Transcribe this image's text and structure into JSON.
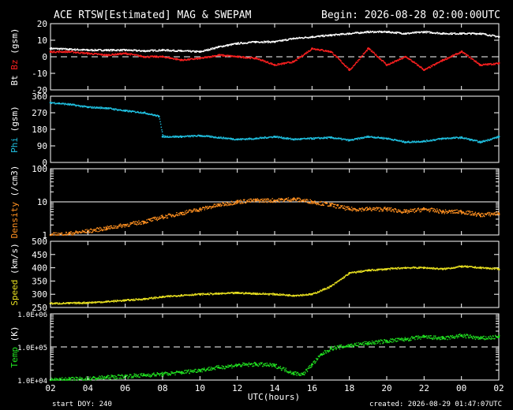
{
  "header": {
    "title": "ACE RTSW[Estimated] MAG & SWEPAM",
    "begin": "Begin: 2026-08-28 02:00:00UTC"
  },
  "footer": {
    "start": "start DOY: 240",
    "created": "created: 2026-08-29 01:47:07UTC"
  },
  "colors": {
    "bt": "#ffffff",
    "bz": "#ff2020",
    "phi": "#20c0e0",
    "density": "#ff9020",
    "speed": "#e8e020",
    "temp": "#20e020"
  },
  "chart_data": {
    "type": "scatter",
    "x_axis": {
      "label": "UTC(hours)",
      "ticks": [
        "02",
        "04",
        "06",
        "08",
        "10",
        "12",
        "14",
        "16",
        "18",
        "20",
        "22",
        "00",
        "02"
      ],
      "range": [
        0,
        24
      ]
    },
    "panels": [
      {
        "id": "mag",
        "ylim": [
          -20,
          20
        ],
        "yticks": [
          "20",
          "10",
          "0",
          "-10",
          "-20"
        ],
        "ylabel_parts": [
          {
            "text": "Bt",
            "color": "#ffffff"
          },
          {
            "text": " Bz",
            "color": "#ff2020"
          },
          {
            "text": " (gsm)",
            "color": "#ffffff"
          }
        ],
        "reference_lines": [
          {
            "y": 0,
            "dashed": true
          }
        ],
        "series": [
          {
            "name": "Bt",
            "color": "#ffffff",
            "x": [
              0,
              1,
              2,
              3,
              4,
              5,
              6,
              7,
              8,
              9,
              10,
              11,
              12,
              13,
              14,
              15,
              16,
              17,
              18,
              19,
              20,
              21,
              22,
              23,
              24
            ],
            "y": [
              5,
              4.5,
              4,
              4,
              4,
              3.5,
              4,
              3.5,
              3,
              6,
              8,
              9,
              9,
              11,
              12,
              13,
              14,
              15,
              15,
              14,
              15,
              14,
              14,
              14,
              12
            ]
          },
          {
            "name": "Bz",
            "color": "#ff2020",
            "x": [
              0,
              1,
              2,
              3,
              4,
              5,
              6,
              7,
              8,
              9,
              10,
              11,
              12,
              13,
              14,
              15,
              16,
              17,
              18,
              19,
              20,
              21,
              22,
              23,
              24
            ],
            "y": [
              3,
              3,
              2,
              1,
              2,
              0,
              0,
              -2,
              -1,
              1,
              0,
              -1,
              -5,
              -3,
              5,
              3,
              -8,
              5,
              -5,
              0,
              -8,
              -2,
              3,
              -5,
              -4
            ]
          }
        ]
      },
      {
        "id": "phi",
        "ylim": [
          0,
          360
        ],
        "yticks": [
          "360",
          "270",
          "180",
          "90",
          "0"
        ],
        "ylabel_parts": [
          {
            "text": "Phi",
            "color": "#20c0e0"
          },
          {
            "text": " (gsm)",
            "color": "#ffffff"
          }
        ],
        "series": [
          {
            "name": "Phi",
            "color": "#20c0e0",
            "x": [
              0,
              1,
              2,
              3,
              4,
              5,
              5.8,
              6,
              7,
              8,
              9,
              10,
              11,
              12,
              13,
              14,
              15,
              16,
              17,
              18,
              19,
              20,
              21,
              22,
              23,
              24
            ],
            "y": [
              325,
              315,
              300,
              295,
              280,
              270,
              250,
              140,
              140,
              145,
              135,
              125,
              130,
              140,
              125,
              130,
              135,
              120,
              140,
              130,
              110,
              115,
              130,
              135,
              110,
              140
            ]
          }
        ]
      },
      {
        "id": "density",
        "scale": "log",
        "ylim": [
          1,
          100
        ],
        "yticks": [
          "100",
          "10",
          "1"
        ],
        "ylabel_parts": [
          {
            "text": "Density",
            "color": "#ff9020"
          },
          {
            "text": " (/cm3)",
            "color": "#ffffff"
          }
        ],
        "reference_lines": [
          {
            "y": 10,
            "dashed": false
          }
        ],
        "series": [
          {
            "name": "Density",
            "color": "#ff9020",
            "x": [
              0,
              1,
              2,
              3,
              4,
              5,
              6,
              7,
              8,
              9,
              10,
              11,
              12,
              13,
              14,
              15,
              16,
              17,
              18,
              19,
              20,
              21,
              22,
              23,
              24
            ],
            "y": [
              1,
              1.1,
              1.3,
              1.6,
              2,
              2.5,
              3.5,
              4.5,
              6,
              8,
              10,
              11,
              11,
              12,
              10,
              8,
              6,
              6,
              6,
              5,
              6,
              5,
              5,
              4,
              4.5
            ]
          }
        ]
      },
      {
        "id": "speed",
        "ylim": [
          250,
          500
        ],
        "yticks": [
          "500",
          "450",
          "400",
          "350",
          "300",
          "250"
        ],
        "ylabel_parts": [
          {
            "text": "Speed",
            "color": "#e8e020"
          },
          {
            "text": " (km/s)",
            "color": "#ffffff"
          }
        ],
        "series": [
          {
            "name": "Speed",
            "color": "#e8e020",
            "x": [
              0,
              1,
              2,
              3,
              4,
              5,
              6,
              7,
              8,
              9,
              10,
              11,
              12,
              13,
              14,
              15,
              16,
              17,
              18,
              19,
              20,
              21,
              22,
              23,
              24
            ],
            "y": [
              265,
              266,
              268,
              272,
              277,
              282,
              290,
              296,
              300,
              302,
              305,
              302,
              300,
              295,
              300,
              330,
              380,
              390,
              395,
              400,
              400,
              395,
              405,
              400,
              395
            ]
          }
        ]
      },
      {
        "id": "temp",
        "scale": "log",
        "ylim": [
          10000,
          1000000
        ],
        "yticks": [
          "1.0E+06",
          "1.0E+05",
          "1.0E+04"
        ],
        "ylabel_parts": [
          {
            "text": "Temp",
            "color": "#20e020"
          },
          {
            "text": " (K)",
            "color": "#ffffff"
          }
        ],
        "reference_lines": [
          {
            "y": 100000,
            "dashed": true
          }
        ],
        "series": [
          {
            "name": "Temp",
            "color": "#20e020",
            "x": [
              0,
              1,
              2,
              3,
              4,
              5,
              6,
              7,
              8,
              9,
              10,
              11,
              12,
              13,
              13.5,
              14,
              14.5,
              15,
              16,
              17,
              18,
              19,
              20,
              21,
              22,
              23,
              24
            ],
            "y": [
              10000,
              10500,
              11000,
              12000,
              13000,
              14000,
              15000,
              17000,
              20000,
              24000,
              28000,
              30000,
              27000,
              16000,
              15000,
              30000,
              60000,
              90000,
              110000,
              130000,
              150000,
              170000,
              200000,
              180000,
              220000,
              180000,
              200000
            ]
          }
        ]
      }
    ]
  }
}
